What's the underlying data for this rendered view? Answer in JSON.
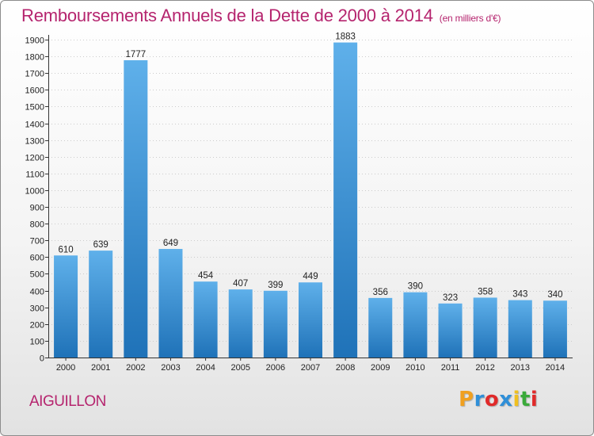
{
  "title": "Remboursements Annuels de la Dette de 2000 à 2014",
  "unit_note": "(en milliers d'€)",
  "commune": "AIGUILLON",
  "logo": {
    "text": "Proxiti",
    "letters": [
      {
        "char": "P",
        "color": "#f0a020"
      },
      {
        "char": "r",
        "color": "#2f8fd8"
      },
      {
        "char": "o",
        "color": "#e02a2a"
      },
      {
        "char": "x",
        "color": "#2f8fd8"
      },
      {
        "char": "i",
        "color": "#f0c020"
      },
      {
        "char": "t",
        "color": "#3aaa3a"
      },
      {
        "char": "i",
        "color": "#e02a2a"
      }
    ]
  },
  "colors": {
    "bar_top": "#5fb0ea",
    "bar_bottom": "#1f72b8",
    "title": "#b5246e",
    "grid": "#cccccc",
    "axis": "#333333"
  },
  "chart_data": {
    "type": "bar",
    "title": "Remboursements Annuels de la Dette de 2000 à 2014",
    "xlabel": "",
    "ylabel": "",
    "unit": "milliers d'€",
    "categories": [
      "2000",
      "2001",
      "2002",
      "2003",
      "2004",
      "2005",
      "2006",
      "2007",
      "2008",
      "2009",
      "2010",
      "2011",
      "2012",
      "2013",
      "2014"
    ],
    "values": [
      610,
      639,
      1777,
      649,
      454,
      407,
      399,
      449,
      1883,
      356,
      390,
      323,
      358,
      343,
      340
    ],
    "ylim": [
      0,
      1900
    ],
    "yticks": [
      0,
      100,
      200,
      300,
      400,
      500,
      600,
      700,
      800,
      900,
      1000,
      1100,
      1200,
      1300,
      1400,
      1500,
      1600,
      1700,
      1800,
      1900
    ],
    "grid": true,
    "data_labels": true
  }
}
